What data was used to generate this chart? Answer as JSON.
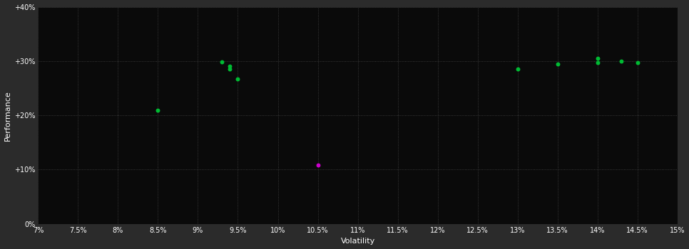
{
  "background_color": "#2b2b2b",
  "plot_bg_color": "#0a0a0a",
  "grid_color": "#444444",
  "text_color": "#ffffff",
  "xlabel": "Volatility",
  "ylabel": "Performance",
  "xlim": [
    0.07,
    0.15
  ],
  "ylim": [
    0.0,
    0.4
  ],
  "xticks": [
    0.07,
    0.075,
    0.08,
    0.085,
    0.09,
    0.095,
    0.1,
    0.105,
    0.11,
    0.115,
    0.12,
    0.125,
    0.13,
    0.135,
    0.14,
    0.145,
    0.15
  ],
  "xtick_labels": [
    "7%",
    "7.5%",
    "8%",
    "8.5%",
    "9%",
    "9.5%",
    "10%",
    "10.5%",
    "11%",
    "11.5%",
    "12%",
    "12.5%",
    "13%",
    "13.5%",
    "14%",
    "14.5%",
    "15%"
  ],
  "yticks": [
    0.0,
    0.1,
    0.2,
    0.3,
    0.4
  ],
  "ytick_labels": [
    "0%",
    "+10%",
    "+20%",
    "+30%",
    "+40%"
  ],
  "green_points": [
    [
      0.085,
      0.21
    ],
    [
      0.093,
      0.298
    ],
    [
      0.094,
      0.291
    ],
    [
      0.094,
      0.286
    ],
    [
      0.095,
      0.267
    ],
    [
      0.13,
      0.286
    ],
    [
      0.135,
      0.294
    ],
    [
      0.14,
      0.305
    ],
    [
      0.14,
      0.297
    ],
    [
      0.143,
      0.3
    ],
    [
      0.145,
      0.297
    ]
  ],
  "magenta_points": [
    [
      0.105,
      0.108
    ]
  ],
  "point_size": 18,
  "green_color": "#00bb33",
  "magenta_color": "#cc00cc"
}
